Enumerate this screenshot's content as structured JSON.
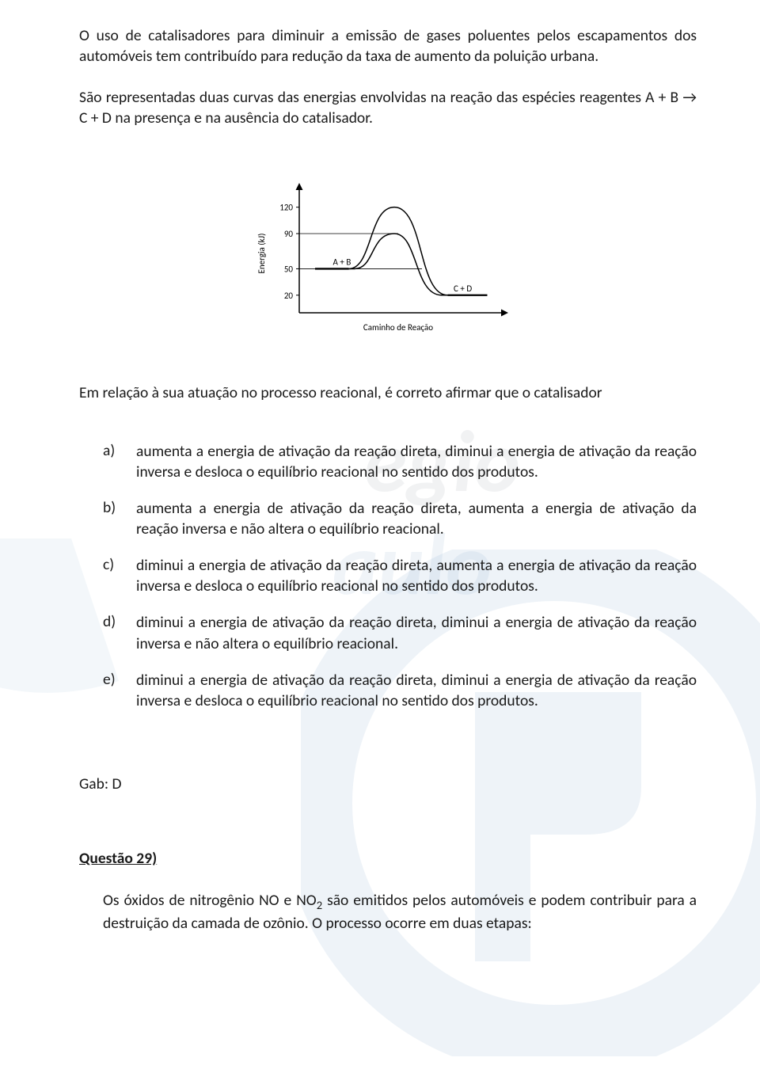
{
  "intro": {
    "p1": "O uso de catalisadores para diminuir a emissão de gases poluentes pelos escapamentos dos automóveis tem contribuído para redução da taxa de aumento da poluição urbana.",
    "p2": "São representadas duas curvas das energias envolvidas na reação das espécies reagentes A + B → C + D na presença e na ausência do catalisador.",
    "p3": "Em relação à sua atuação no processo reacional, é correto afirmar que o catalisador"
  },
  "chart": {
    "type": "line",
    "ylabel": "Energia (kJ)",
    "xlabel": "Caminho de Reação",
    "ylabel_fontsize": 11,
    "xlabel_fontsize": 11,
    "yticks": [
      20,
      50,
      90,
      120
    ],
    "ylim": [
      0,
      135
    ],
    "xlim": [
      0,
      100
    ],
    "reactants_label": "A + B",
    "products_label": "C + D",
    "reactants_level": 50,
    "products_level": 20,
    "curve_no_catalyst_peak": 120,
    "curve_catalyst_peak": 90,
    "line_color": "#000000",
    "line_width": 1.5,
    "background_color": "#ffffff",
    "hline_color": "#000000",
    "hline_width": 0.8
  },
  "options": {
    "a": {
      "label": "a)",
      "text": "aumenta a energia de ativação da reação direta, diminui a energia de ativação da reação inversa e desloca o equilíbrio reacional no sentido dos produtos."
    },
    "b": {
      "label": "b)",
      "text": "aumenta a energia de ativação da reação direta, aumenta a energia de ativação da reação inversa e não altera o equilíbrio reacional."
    },
    "c": {
      "label": "c)",
      "text": "diminui a energia de ativação da reação direta, aumenta a energia de ativação da reação inversa e desloca o equilíbrio reacional no sentido dos produtos."
    },
    "d": {
      "label": "d)",
      "text": "diminui a energia de ativação da reação direta, diminui a energia de ativação da reação inversa e não altera o equilíbrio reacional."
    },
    "e": {
      "label": "e)",
      "text": "diminui a energia de ativação da reação direta, diminui a energia de ativação da reação inversa e desloca o equilíbrio reacional no sentido dos produtos."
    }
  },
  "answer": {
    "label": "Gab: D"
  },
  "next_question": {
    "header": "Questão 29)",
    "body_pre": "Os óxidos de nitrogênio NO e NO",
    "body_sub": "2",
    "body_post": " são emitidos pelos automóveis e podem contribuir para a destruição da camada de ozônio. O processo ocorre em duas etapas:"
  },
  "watermark_colors": {
    "blue": "#4a7fb5",
    "dark": "#5a6b78"
  }
}
